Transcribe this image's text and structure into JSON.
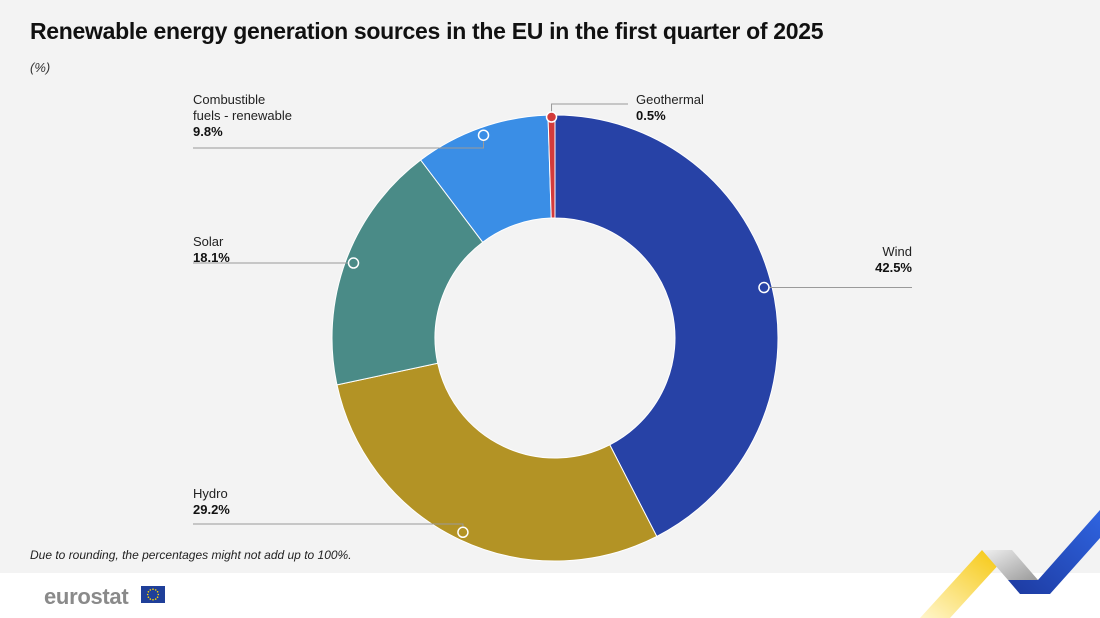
{
  "header": {
    "title": "Renewable energy generation sources in the EU in the first quarter of  2025",
    "subtitle": "(%)"
  },
  "footnote": "Due to rounding, the percentages might not add up to 100%.",
  "branding": {
    "logo_text": "eurostat"
  },
  "chart_data": {
    "type": "pie",
    "variant": "donut",
    "title": "Renewable energy generation sources in the EU in the first quarter of  2025",
    "unit": "%",
    "slices": [
      {
        "label": "Wind",
        "value": 42.5,
        "value_label": "42.5%",
        "color": "#2742a6"
      },
      {
        "label": "Hydro",
        "value": 29.2,
        "value_label": "29.2%",
        "color": "#b39325"
      },
      {
        "label": "Solar",
        "value": 18.1,
        "value_label": "18.1%",
        "color": "#4a8b87"
      },
      {
        "label": "Combustible fuels - renewable",
        "label_lines": [
          "Combustible",
          "fuels - renewable"
        ],
        "value": 9.8,
        "value_label": "9.8%",
        "color": "#3a8ee6"
      },
      {
        "label": "Geothermal",
        "value": 0.5,
        "value_label": "0.5%",
        "color": "#d33b3b"
      }
    ]
  }
}
